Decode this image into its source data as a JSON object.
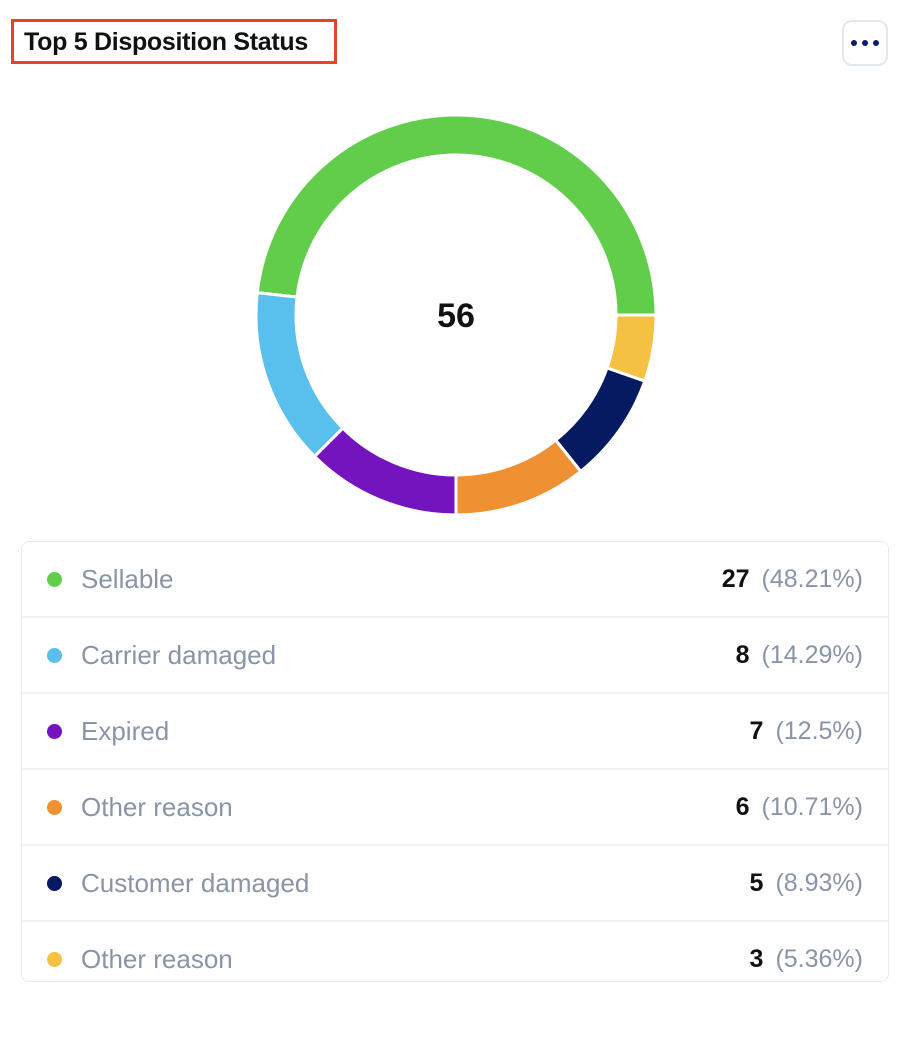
{
  "header": {
    "title": "Top 5 Disposition Status",
    "menu_icon": "more-horizontal-icon"
  },
  "chart_data": {
    "type": "pie",
    "variant": "donut",
    "title": "Top 5 Disposition Status",
    "total_label": "56",
    "start": "east",
    "direction": "counterclockwise",
    "slices": [
      {
        "label": "Sellable",
        "value": 27,
        "percent": "(48.21%)",
        "color": "#62cd4b"
      },
      {
        "label": "Carrier damaged",
        "value": 8,
        "percent": "(14.29%)",
        "color": "#59bfec"
      },
      {
        "label": "Expired",
        "value": 7,
        "percent": "(12.5%)",
        "color": "#7414be"
      },
      {
        "label": "Other reason",
        "value": 6,
        "percent": "(10.71%)",
        "color": "#ef9133"
      },
      {
        "label": "Customer damaged",
        "value": 5,
        "percent": "(8.93%)",
        "color": "#061a62"
      },
      {
        "label": "Other reason",
        "value": 3,
        "percent": "(5.36%)",
        "color": "#f4c142"
      }
    ]
  }
}
